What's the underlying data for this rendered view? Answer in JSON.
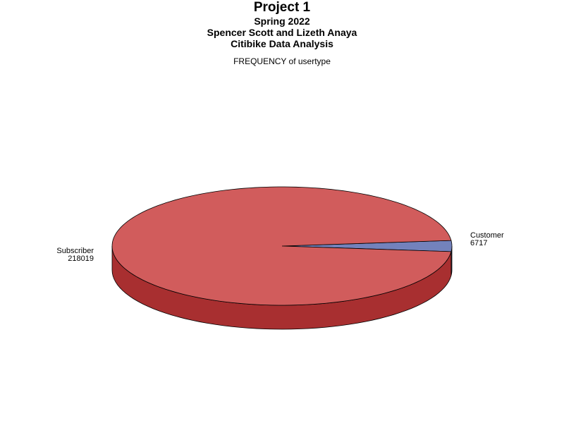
{
  "titles": {
    "title": "Project 1",
    "subtitle1": "Spring  2022",
    "subtitle2": "Spencer Scott and Lizeth Anaya",
    "subtitle3": "Citibike Data Analysis",
    "plot_title": "FREQUENCY of usertype"
  },
  "chart_data": {
    "type": "pie",
    "style": "3d",
    "title": "Project 1",
    "subtitles": [
      "Spring  2022",
      "Spencer Scott and Lizeth Anaya",
      "Citibike Data Analysis"
    ],
    "plot_title": "FREQUENCY of usertype",
    "slices": [
      {
        "label": "Customer",
        "value": 6717,
        "value_label": "6717",
        "color": "#7382bc",
        "side_color": "#5a68a0"
      },
      {
        "label": "Subscriber",
        "value": 218019,
        "value_label": "218019",
        "color": "#d15c5c",
        "side_color": "#a82f30"
      }
    ]
  }
}
